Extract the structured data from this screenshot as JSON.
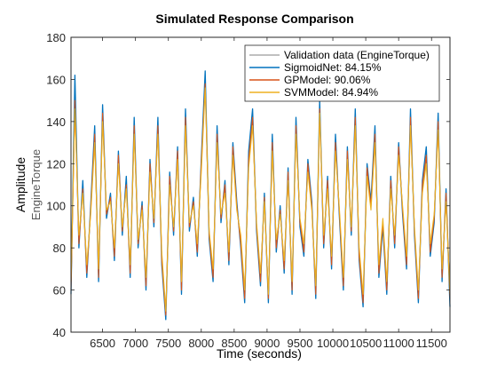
{
  "chart_data": {
    "type": "line",
    "title": "Simulated Response Comparison",
    "xlabel": "Time (seconds)",
    "ylabel": "Amplitude",
    "channel_label": "EngineTorque",
    "xlim": [
      6020,
      11780
    ],
    "ylim": [
      40,
      180
    ],
    "x_ticks": [
      "6500",
      "7000",
      "7500",
      "8000",
      "8500",
      "9000",
      "9500",
      "10000",
      "10500",
      "11000",
      "11500"
    ],
    "y_ticks": [
      "40",
      "60",
      "80",
      "100",
      "120",
      "140",
      "160",
      "180"
    ],
    "grid": false,
    "legend_position": "top-right",
    "legend": [
      "Validation data (EngineTorque)",
      "SigmoidNet: 84.15%",
      "GPModel: 90.06%",
      "SVMModel: 84.94%"
    ],
    "series_colors": [
      "#808080",
      "#0072BD",
      "#D95319",
      "#EDB120"
    ],
    "x": [
      6020,
      6080,
      6140,
      6200,
      6260,
      6320,
      6380,
      6440,
      6500,
      6560,
      6620,
      6680,
      6740,
      6800,
      6860,
      6920,
      6980,
      7040,
      7100,
      7160,
      7220,
      7280,
      7340,
      7400,
      7460,
      7520,
      7580,
      7640,
      7700,
      7760,
      7820,
      7880,
      7940,
      8000,
      8060,
      8120,
      8180,
      8240,
      8300,
      8360,
      8420,
      8480,
      8540,
      8600,
      8660,
      8720,
      8780,
      8840,
      8900,
      8960,
      9020,
      9080,
      9140,
      9200,
      9260,
      9320,
      9380,
      9440,
      9500,
      9560,
      9620,
      9680,
      9740,
      9800,
      9860,
      9920,
      9980,
      10040,
      10100,
      10160,
      10220,
      10280,
      10340,
      10400,
      10460,
      10520,
      10580,
      10640,
      10700,
      10760,
      10820,
      10880,
      10940,
      11000,
      11060,
      11120,
      11180,
      11240,
      11300,
      11360,
      11420,
      11480,
      11540,
      11600,
      11660,
      11720,
      11780
    ],
    "series": [
      {
        "name": "Validation data (EngineTorque)",
        "values": [
          62,
          148,
          84,
          108,
          70,
          98,
          132,
          68,
          142,
          96,
          104,
          78,
          122,
          88,
          110,
          70,
          136,
          82,
          100,
          64,
          118,
          92,
          136,
          76,
          48,
          112,
          88,
          124,
          62,
          140,
          90,
          102,
          80,
          118,
          160,
          86,
          68,
          132,
          94,
          108,
          76,
          126,
          100,
          84,
          58,
          120,
          140,
          90,
          66,
          104,
          56,
          128,
          82,
          98,
          72,
          114,
          62,
          136,
          92,
          80,
          118,
          100,
          60,
          146,
          84,
          110,
          74,
          128,
          96,
          64,
          124,
          88,
          140,
          78,
          56,
          116,
          100,
          132,
          70,
          92,
          62,
          110,
          84,
          126,
          98,
          74,
          140,
          88,
          58,
          108,
          122,
          80,
          94,
          138,
          68,
          104,
          60
        ]
      },
      {
        "name": "SigmoidNet: 84.15%",
        "values": [
          58,
          162,
          80,
          112,
          66,
          100,
          138,
          64,
          148,
          94,
          106,
          74,
          126,
          86,
          114,
          66,
          142,
          80,
          102,
          60,
          122,
          90,
          142,
          72,
          46,
          116,
          86,
          128,
          58,
          146,
          88,
          104,
          76,
          122,
          164,
          84,
          64,
          138,
          92,
          112,
          72,
          130,
          102,
          80,
          54,
          126,
          146,
          88,
          62,
          106,
          54,
          134,
          78,
          100,
          68,
          118,
          58,
          142,
          90,
          76,
          122,
          102,
          56,
          150,
          80,
          114,
          70,
          134,
          94,
          60,
          128,
          86,
          146,
          74,
          52,
          120,
          102,
          138,
          66,
          90,
          58,
          114,
          80,
          130,
          96,
          70,
          146,
          86,
          54,
          112,
          128,
          76,
          92,
          144,
          64,
          108,
          52
        ]
      },
      {
        "name": "GPModel: 90.06%",
        "values": [
          60,
          150,
          82,
          108,
          68,
          98,
          134,
          66,
          144,
          96,
          104,
          76,
          124,
          88,
          110,
          68,
          138,
          82,
          100,
          62,
          120,
          92,
          138,
          74,
          48,
          114,
          88,
          126,
          60,
          142,
          90,
          102,
          78,
          120,
          158,
          86,
          66,
          134,
          94,
          110,
          74,
          128,
          100,
          82,
          56,
          122,
          142,
          90,
          64,
          104,
          56,
          130,
          80,
          98,
          70,
          116,
          60,
          138,
          92,
          78,
          120,
          100,
          58,
          146,
          82,
          112,
          72,
          130,
          96,
          62,
          126,
          88,
          142,
          76,
          54,
          118,
          100,
          134,
          68,
          92,
          60,
          112,
          82,
          128,
          98,
          72,
          142,
          88,
          56,
          110,
          124,
          78,
          94,
          140,
          66,
          106,
          56
        ]
      },
      {
        "name": "SVMModel: 84.94%",
        "values": [
          64,
          146,
          86,
          106,
          72,
          96,
          130,
          70,
          140,
          98,
          102,
          80,
          120,
          90,
          108,
          72,
          134,
          84,
          98,
          66,
          116,
          94,
          134,
          78,
          50,
          110,
          90,
          122,
          64,
          138,
          92,
          100,
          82,
          116,
          156,
          88,
          70,
          130,
          96,
          106,
          78,
          124,
          98,
          86,
          60,
          118,
          138,
          92,
          68,
          102,
          58,
          126,
          84,
          96,
          74,
          112,
          64,
          134,
          94,
          82,
          116,
          98,
          62,
          144,
          86,
          108,
          76,
          126,
          98,
          66,
          122,
          90,
          138,
          80,
          58,
          114,
          98,
          130,
          72,
          94,
          64,
          108,
          86,
          124,
          100,
          76,
          138,
          90,
          60,
          106,
          120,
          82,
          96,
          136,
          70,
          102,
          58
        ]
      }
    ]
  }
}
